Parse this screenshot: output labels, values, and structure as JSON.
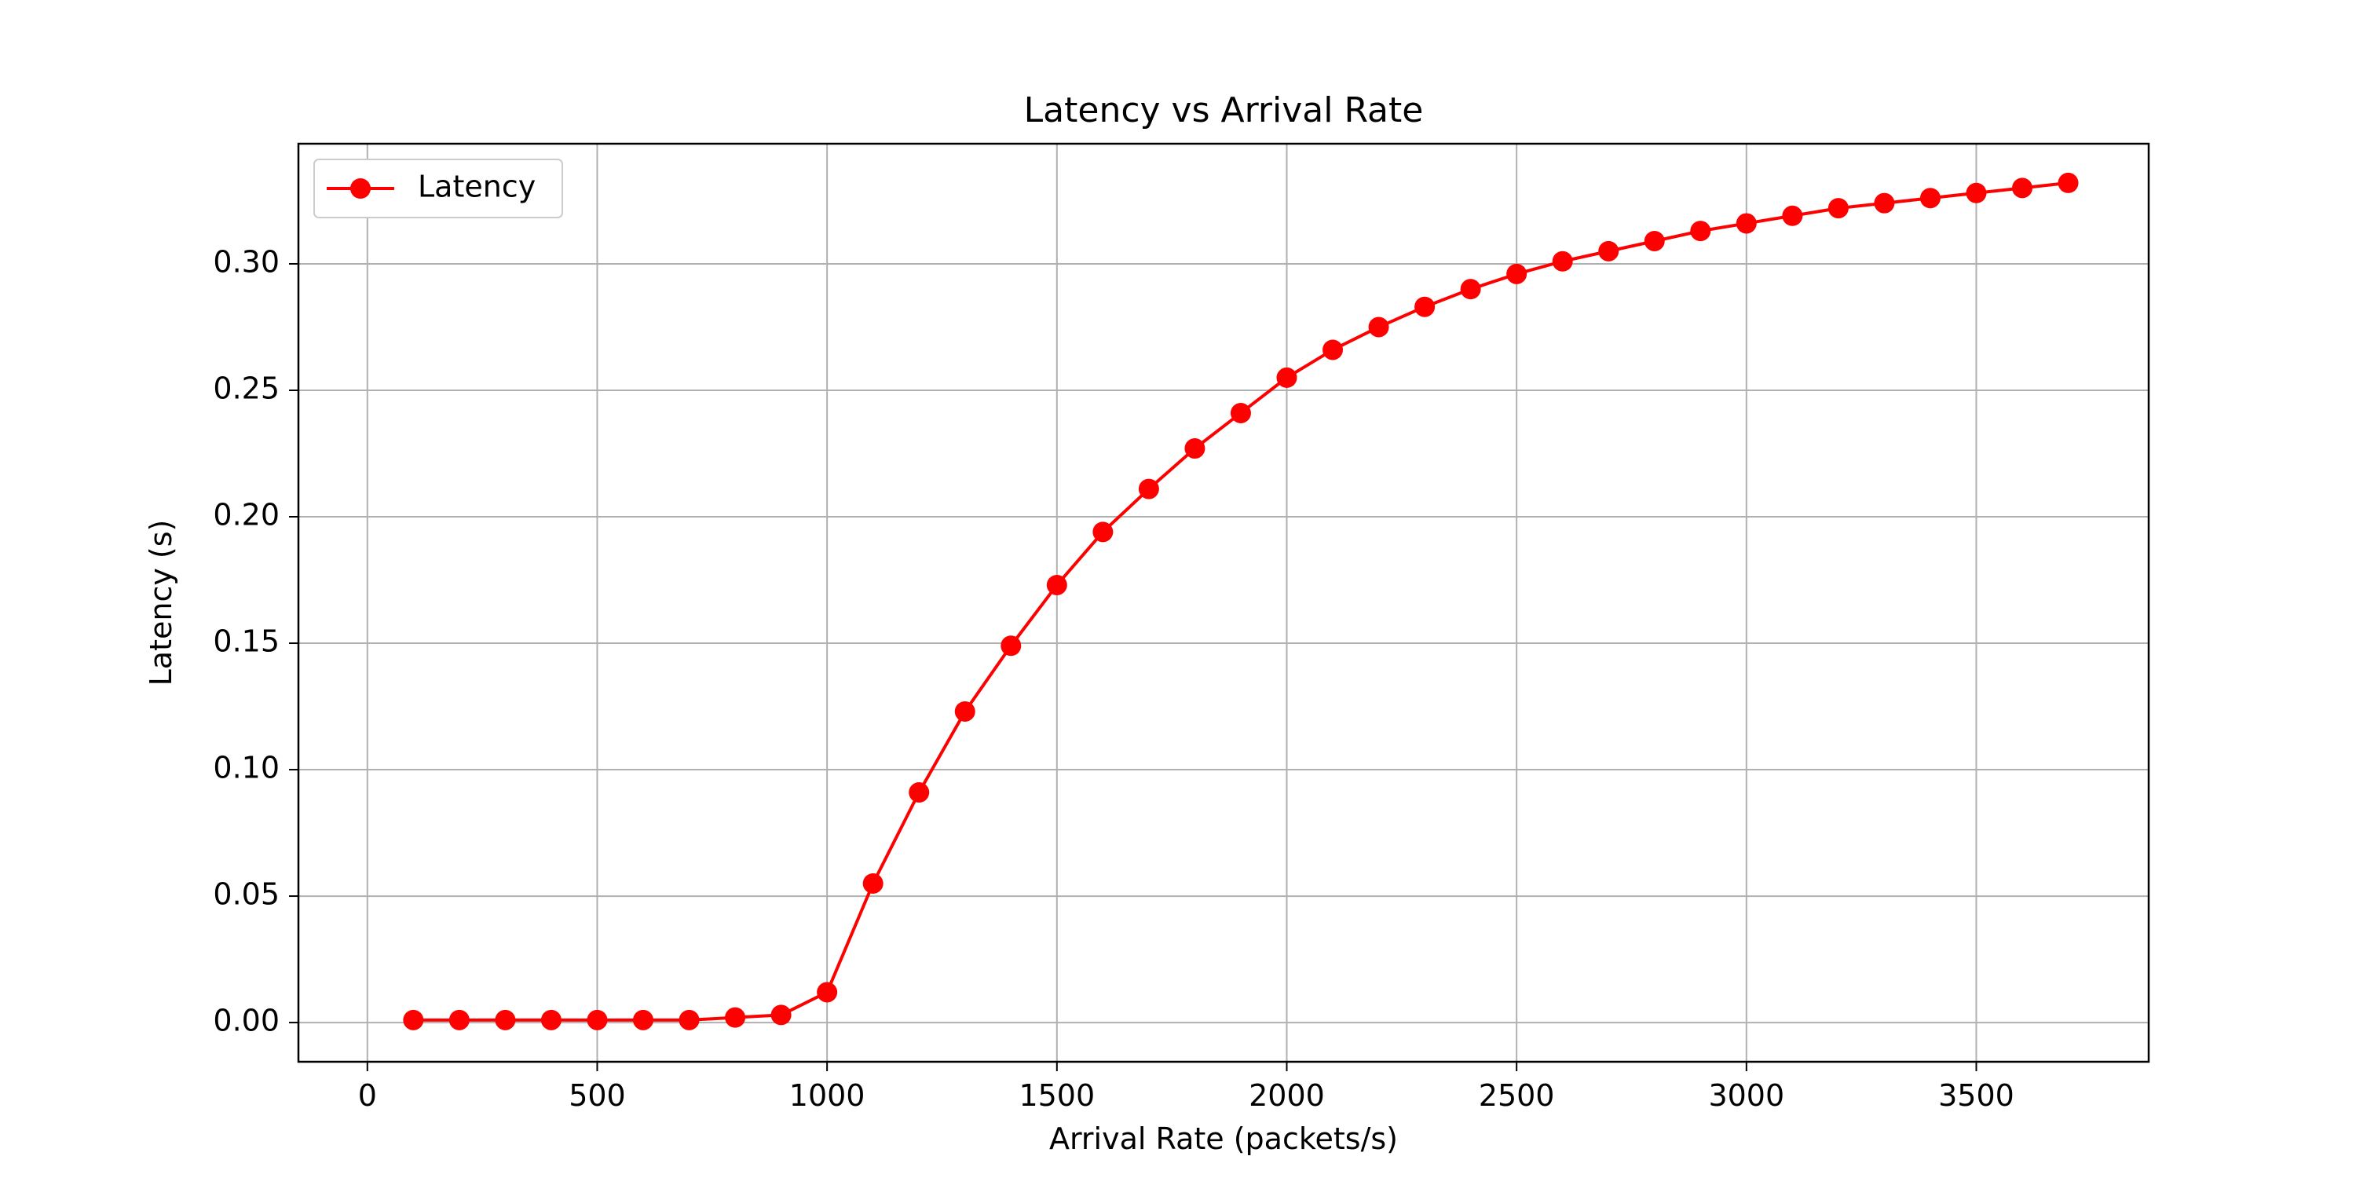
{
  "chart_data": {
    "type": "line",
    "title": "Latency vs Arrival Rate",
    "xlabel": "Arrival Rate (packets/s)",
    "ylabel": "Latency (s)",
    "xlim": [
      -150,
      3875
    ],
    "ylim": [
      -0.0155,
      0.3475
    ],
    "xticks": [
      0,
      500,
      1000,
      1500,
      2000,
      2500,
      3000,
      3500
    ],
    "xtick_labels": [
      "0",
      "500",
      "1000",
      "1500",
      "2000",
      "2500",
      "3000",
      "3500"
    ],
    "yticks": [
      0.0,
      0.05,
      0.1,
      0.15,
      0.2,
      0.25,
      0.3
    ],
    "ytick_labels": [
      "0.00",
      "0.05",
      "0.10",
      "0.15",
      "0.20",
      "0.25",
      "0.30"
    ],
    "grid": true,
    "legend": "upper-left",
    "series": [
      {
        "name": "Latency",
        "color": "#ff0000",
        "marker": "circle",
        "x": [
          100,
          200,
          300,
          400,
          500,
          600,
          700,
          800,
          900,
          1000,
          1100,
          1200,
          1300,
          1400,
          1500,
          1600,
          1700,
          1800,
          1900,
          2000,
          2100,
          2200,
          2300,
          2400,
          2500,
          2600,
          2700,
          2800,
          2900,
          3000,
          3100,
          3200,
          3300,
          3400,
          3500,
          3600,
          3700
        ],
        "y": [
          0.001,
          0.001,
          0.001,
          0.001,
          0.001,
          0.001,
          0.001,
          0.002,
          0.003,
          0.012,
          0.055,
          0.091,
          0.123,
          0.149,
          0.173,
          0.194,
          0.211,
          0.227,
          0.241,
          0.255,
          0.266,
          0.275,
          0.283,
          0.29,
          0.296,
          0.301,
          0.305,
          0.309,
          0.313,
          0.316,
          0.319,
          0.322,
          0.324,
          0.326,
          0.328,
          0.33,
          0.332
        ]
      }
    ]
  }
}
